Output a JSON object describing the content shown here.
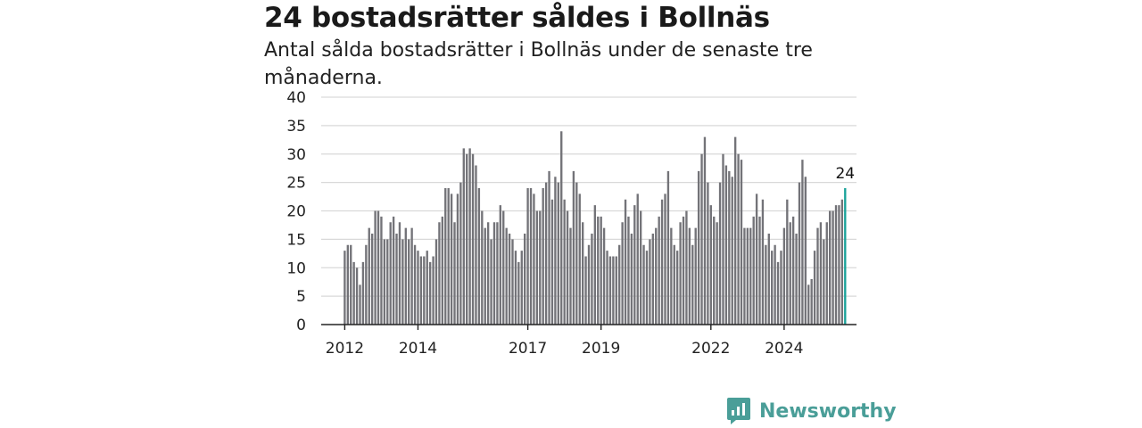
{
  "header": {
    "title": "24 bostadsrätter såldes i Bollnäs",
    "subtitle": "Antal sålda bostadsrätter i Bollnäs under de senaste tre månaderna."
  },
  "brand": {
    "name": "Newsworthy",
    "icon": "bar-chart-speech-bubble-icon",
    "color": "#4a9e98"
  },
  "colors": {
    "bar": "#737378",
    "highlight": "#1aa39a",
    "grid": "#d9d9d9",
    "axis": "#222222"
  },
  "chart_data": {
    "type": "bar",
    "title": "24 bostadsrätter såldes i Bollnäs",
    "subtitle": "Antal sålda bostadsrätter i Bollnäs under de senaste tre månaderna.",
    "xlabel": "",
    "ylabel": "",
    "ylim": [
      0,
      40
    ],
    "yticks": [
      0,
      5,
      10,
      15,
      20,
      25,
      30,
      35,
      40
    ],
    "x_tick_labels": [
      "2012",
      "2014",
      "2017",
      "2019",
      "2022",
      "2024"
    ],
    "grid": true,
    "legend": "none",
    "start": "2012-01",
    "frequency": "monthly, rolling three-month total",
    "last_value_label": "24",
    "values": [
      13,
      14,
      14,
      11,
      10,
      7,
      11,
      14,
      17,
      16,
      20,
      20,
      19,
      15,
      15,
      18,
      19,
      16,
      18,
      15,
      17,
      15,
      17,
      14,
      13,
      12,
      12,
      13,
      11,
      12,
      15,
      18,
      19,
      24,
      24,
      23,
      18,
      23,
      25,
      31,
      30,
      31,
      30,
      28,
      24,
      20,
      17,
      18,
      15,
      18,
      18,
      21,
      20,
      17,
      16,
      15,
      13,
      11,
      13,
      16,
      24,
      24,
      23,
      20,
      20,
      24,
      25,
      27,
      22,
      26,
      25,
      34,
      22,
      20,
      17,
      27,
      25,
      23,
      18,
      12,
      14,
      16,
      21,
      19,
      19,
      17,
      13,
      12,
      12,
      12,
      14,
      18,
      22,
      19,
      16,
      21,
      23,
      20,
      14,
      13,
      15,
      16,
      17,
      19,
      22,
      23,
      27,
      17,
      14,
      13,
      18,
      19,
      20,
      17,
      14,
      17,
      27,
      30,
      33,
      25,
      21,
      19,
      18,
      25,
      30,
      28,
      27,
      26,
      33,
      30,
      29,
      17,
      17,
      17,
      19,
      23,
      19,
      22,
      14,
      16,
      13,
      14,
      11,
      13,
      17,
      22,
      18,
      19,
      16,
      25,
      29,
      26,
      7,
      8,
      13,
      17,
      18,
      15,
      18,
      20,
      20,
      21,
      21,
      22,
      24
    ]
  }
}
